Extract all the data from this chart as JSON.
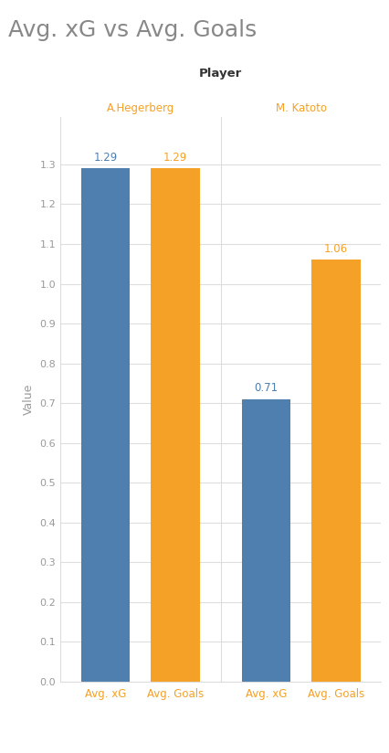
{
  "title": "Avg. xG vs Avg. Goals",
  "facet_label": "Player",
  "players": [
    "A.Hegerberg",
    "M. Katoto"
  ],
  "categories": [
    "Avg. xG",
    "Avg. Goals"
  ],
  "values": {
    "A.Hegerberg": [
      1.29,
      1.29
    ],
    "M. Katoto": [
      0.71,
      1.06
    ]
  },
  "bar_colors": [
    "#4e7faf",
    "#f5a128"
  ],
  "title_color": "#888888",
  "facet_label_color": "#333333",
  "player_label_color": "#f5a128",
  "xticklabel_color": "#f5a128",
  "ytick_color": "#999999",
  "ylabel": "Value",
  "ylim": [
    0.0,
    1.42
  ],
  "yticks": [
    0.0,
    0.1,
    0.2,
    0.3,
    0.4,
    0.5,
    0.6,
    0.7,
    0.8,
    0.9,
    1.0,
    1.1,
    1.2,
    1.3
  ],
  "background_color": "#ffffff",
  "grid_color": "#dddddd",
  "bar_width": 0.7,
  "annot_color_xg": "#4e7faf",
  "annot_color_goals": "#f5a128",
  "title_fontsize": 18,
  "player_fontsize": 8.5,
  "facet_fontsize": 9.5,
  "ytick_fontsize": 8,
  "xtick_fontsize": 8.5,
  "annot_fontsize": 8.5,
  "ylabel_fontsize": 9
}
